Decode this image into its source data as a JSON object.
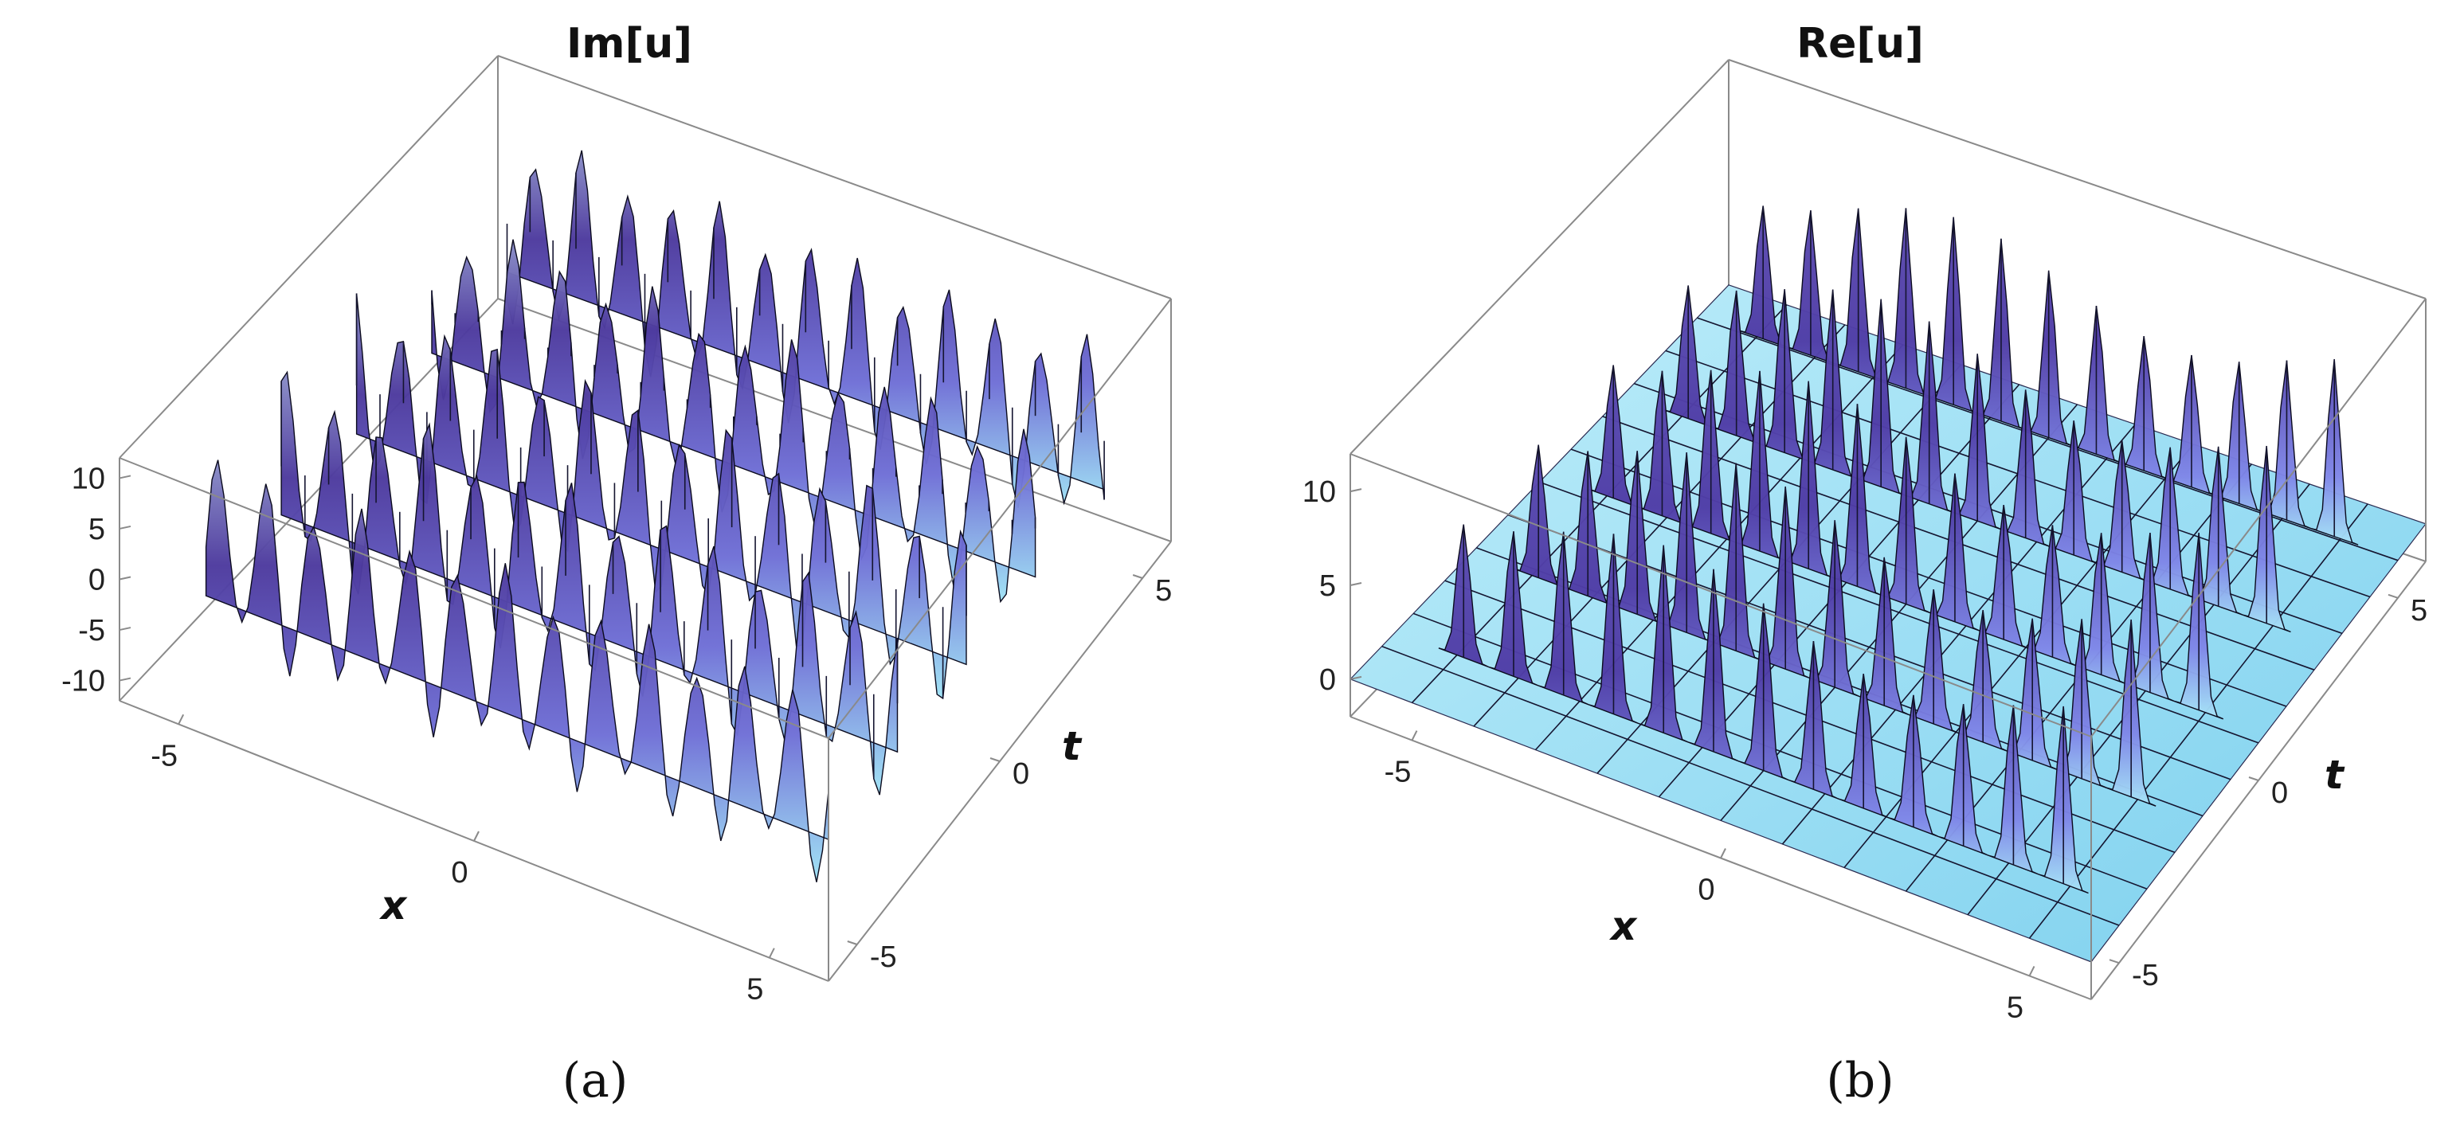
{
  "chart_data": [
    {
      "type": "surface3d",
      "title": "Im[u]",
      "caption": "(a)",
      "xlabel": "x",
      "ylabel": "t",
      "zlabel": "",
      "x_ticks": [
        "-5",
        "0",
        "5"
      ],
      "t_ticks": [
        "-5",
        "0",
        "5"
      ],
      "z_ticks": [
        "10",
        "5",
        "0",
        "-5",
        "-10"
      ],
      "xlim": [
        -6,
        6
      ],
      "tlim": [
        -6,
        6
      ],
      "zlim": [
        -12,
        12
      ],
      "surface": {
        "function": "Im[u(x,t)]",
        "ridge_rows_along_x": 5,
        "peaks_per_row": 13,
        "amplitude_approx": 10,
        "oscillates_between": [
          -10,
          10
        ]
      },
      "colors": {
        "low": "#9fe3f5",
        "mid": "#5a48c0",
        "high": "#3a2a7c",
        "accent": "#c9cf8f"
      }
    },
    {
      "type": "surface3d",
      "title": "Re[u]",
      "caption": "(b)",
      "xlabel": "x",
      "ylabel": "t",
      "zlabel": "",
      "x_ticks": [
        "-5",
        "0",
        "5"
      ],
      "t_ticks": [
        "-5",
        "0",
        "5"
      ],
      "z_ticks": [
        "10",
        "5",
        "0"
      ],
      "xlim": [
        -6,
        6
      ],
      "tlim": [
        -6,
        6
      ],
      "zlim": [
        -2,
        12
      ],
      "surface": {
        "function": "Re[u(x,t)]",
        "ridge_rows_along_x": 5,
        "peaks_per_row": 13,
        "amplitude_approx": 10,
        "baseline": 0
      },
      "colors": {
        "low": "#a8e6f7",
        "mid": "#5a48c0",
        "high": "#3a2a7c",
        "accent": "#c9cf8f"
      }
    }
  ]
}
